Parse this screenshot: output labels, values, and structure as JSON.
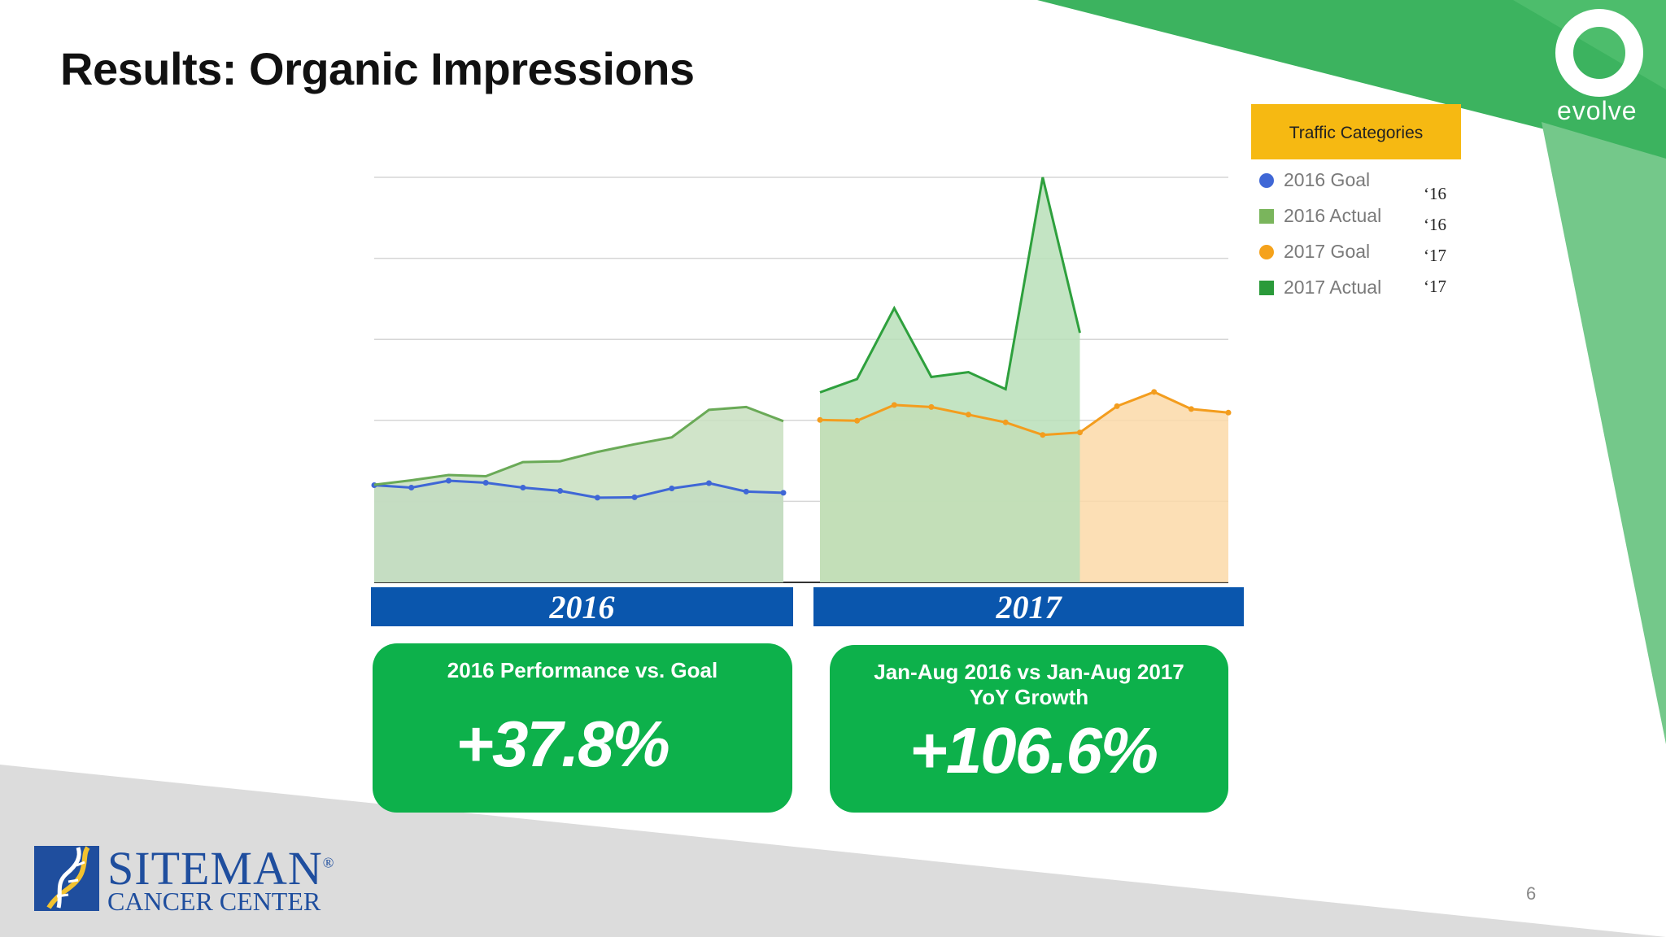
{
  "slide": {
    "title": "Results: Organic Impressions",
    "page_number": "6"
  },
  "brand": {
    "evolve_wordmark": "evolve",
    "sponsor_name": "SITEMAN",
    "sponsor_mark": "®",
    "sponsor_subtitle": "CANCER CENTER"
  },
  "legend": {
    "header": "Traffic Categories",
    "items": [
      {
        "label": "2016 Goal",
        "suffix": "‘16",
        "color": "#3f67d6",
        "marker": "circle"
      },
      {
        "label": "2016 Actual",
        "suffix": "‘16",
        "color": "#7ab55c",
        "marker": "square"
      },
      {
        "label": "2017 Goal",
        "suffix": "‘17",
        "color": "#f5a21b",
        "marker": "circle"
      },
      {
        "label": "2017 Actual",
        "suffix": "‘17",
        "color": "#2a9a3a",
        "marker": "square"
      }
    ]
  },
  "year_labels": {
    "y2016": "2016",
    "y2017": "2017"
  },
  "cards": [
    {
      "heading_lines": [
        "2016 Performance vs. Goal"
      ],
      "value": "+37.8%"
    },
    {
      "heading_lines": [
        "Jan-Aug 2016 vs Jan-Aug 2017",
        "YoY Growth"
      ],
      "value": "+106.6%"
    }
  ],
  "colors": {
    "accent_green": "#0db14b",
    "year_bar_blue": "#0a56ad",
    "legend_header_yellow": "#f6b912",
    "background_green": "#2eb157"
  },
  "chart_data": {
    "type": "area",
    "grid": true,
    "ylim": [
      0,
      100
    ],
    "panels": [
      {
        "label": "2016",
        "series": [
          {
            "name": "2016 Goal",
            "values": [
              24.0,
              23.4,
              25.1,
              24.6,
              23.4,
              22.6,
              20.9,
              21.0,
              23.2,
              24.5,
              22.4,
              22.1
            ],
            "color": "#3f67d6",
            "fill": "#aac3c4"
          },
          {
            "name": "2016 Actual",
            "values": [
              24.1,
              25.2,
              26.5,
              26.2,
              29.7,
              29.9,
              32.2,
              34.1,
              35.8,
              42.6,
              43.3,
              39.8
            ],
            "color": "#6aaa57",
            "fill": "#c8dfc0"
          }
        ]
      },
      {
        "label": "2017",
        "series": [
          {
            "name": "2017 Goal",
            "values": [
              40.1,
              39.9,
              43.8,
              43.3,
              41.4,
              39.5,
              36.4,
              37.0,
              43.5,
              47.0,
              42.8,
              41.9
            ],
            "color": "#f39d1e",
            "fill": "#fcd9a8"
          },
          {
            "name": "2017 Actual",
            "values": [
              46.9,
              50.2,
              67.7,
              50.7,
              51.9,
              47.7,
              100.0,
              61.6
            ],
            "color": "#2ea03d",
            "fill": "#b8dfb8"
          }
        ]
      }
    ]
  }
}
